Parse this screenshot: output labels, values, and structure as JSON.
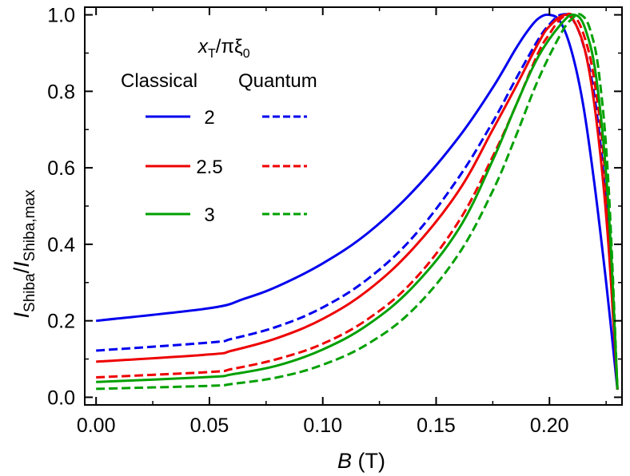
{
  "chart_data": {
    "type": "line",
    "title": "",
    "xlabel": {
      "symbol": "B",
      "unit": "(T)"
    },
    "ylabel": {
      "num": "I",
      "num_sub": "Shiba",
      "den": "I",
      "den_sub": "Shiba,max"
    },
    "xlim": [
      -0.005,
      0.232
    ],
    "ylim": [
      -0.02,
      1.02
    ],
    "xticks": [
      "0.00",
      "0.05",
      "0.10",
      "0.15",
      "0.20"
    ],
    "yticks": [
      "0.0",
      "0.2",
      "0.4",
      "0.6",
      "0.8",
      "1.0"
    ],
    "grid": false,
    "legend": {
      "placement": "top-left",
      "title_var": "x",
      "title_sub": "T",
      "title_rest": "/πξ",
      "title_sub2": "0",
      "col_classical": "Classical",
      "col_quantum": "Quantum",
      "entries": [
        "2",
        "2.5",
        "3"
      ]
    },
    "series": [
      {
        "name": "2 (Classical)",
        "color": "#0000ee",
        "dash": false,
        "x": [
          0,
          0.05,
          0.065,
          0.08,
          0.1,
          0.12,
          0.14,
          0.16,
          0.175,
          0.185,
          0.19,
          0.195,
          0.2,
          0.205,
          0.21,
          0.215,
          0.22,
          0.225,
          0.23
        ],
        "y": [
          0.2,
          0.233,
          0.257,
          0.29,
          0.35,
          0.43,
          0.54,
          0.68,
          0.81,
          0.91,
          0.955,
          0.99,
          1.0,
          0.98,
          0.9,
          0.76,
          0.55,
          0.3,
          0.02
        ]
      },
      {
        "name": "2 (Quantum)",
        "color": "#0000ee",
        "dash": true,
        "x": [
          0,
          0.05,
          0.06,
          0.08,
          0.1,
          0.12,
          0.14,
          0.16,
          0.175,
          0.185,
          0.195,
          0.2,
          0.205,
          0.21,
          0.215,
          0.22,
          0.225,
          0.23
        ],
        "y": [
          0.122,
          0.143,
          0.153,
          0.185,
          0.235,
          0.31,
          0.42,
          0.575,
          0.72,
          0.83,
          0.935,
          0.975,
          1.0,
          0.99,
          0.92,
          0.78,
          0.5,
          0.02
        ]
      },
      {
        "name": "2.5 (Classical)",
        "color": "#ee0000",
        "dash": false,
        "x": [
          0,
          0.05,
          0.06,
          0.08,
          0.1,
          0.12,
          0.14,
          0.16,
          0.175,
          0.185,
          0.195,
          0.2,
          0.207,
          0.212,
          0.217,
          0.222,
          0.226,
          0.23
        ],
        "y": [
          0.093,
          0.112,
          0.122,
          0.155,
          0.205,
          0.28,
          0.39,
          0.54,
          0.7,
          0.81,
          0.925,
          0.97,
          1.0,
          0.97,
          0.87,
          0.66,
          0.4,
          0.02
        ]
      },
      {
        "name": "2.5 (Quantum)",
        "color": "#ee0000",
        "dash": true,
        "x": [
          0,
          0.05,
          0.06,
          0.08,
          0.1,
          0.12,
          0.14,
          0.16,
          0.175,
          0.185,
          0.195,
          0.2,
          0.205,
          0.21,
          0.215,
          0.22,
          0.225,
          0.23
        ],
        "y": [
          0.052,
          0.066,
          0.074,
          0.1,
          0.14,
          0.205,
          0.305,
          0.46,
          0.63,
          0.76,
          0.9,
          0.95,
          0.99,
          1.0,
          0.95,
          0.82,
          0.55,
          0.02
        ]
      },
      {
        "name": "3 (Classical)",
        "color": "#00a000",
        "dash": false,
        "x": [
          0,
          0.05,
          0.06,
          0.08,
          0.1,
          0.12,
          0.14,
          0.16,
          0.175,
          0.185,
          0.195,
          0.205,
          0.211,
          0.216,
          0.221,
          0.226,
          0.23
        ],
        "y": [
          0.04,
          0.053,
          0.06,
          0.083,
          0.125,
          0.19,
          0.29,
          0.44,
          0.62,
          0.76,
          0.89,
          0.975,
          1.0,
          0.96,
          0.82,
          0.5,
          0.02
        ]
      },
      {
        "name": "3 (Quantum)",
        "color": "#00a000",
        "dash": true,
        "x": [
          0,
          0.05,
          0.06,
          0.08,
          0.1,
          0.12,
          0.14,
          0.16,
          0.175,
          0.185,
          0.195,
          0.205,
          0.21,
          0.214,
          0.218,
          0.222,
          0.226,
          0.23
        ],
        "y": [
          0.022,
          0.03,
          0.035,
          0.052,
          0.085,
          0.14,
          0.23,
          0.375,
          0.54,
          0.68,
          0.83,
          0.95,
          0.99,
          1.0,
          0.96,
          0.84,
          0.56,
          0.02
        ]
      }
    ]
  }
}
